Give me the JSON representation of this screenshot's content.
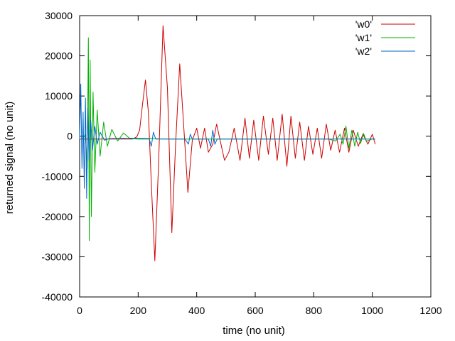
{
  "chart_data": {
    "type": "line",
    "title": "",
    "xlabel": "time (no unit)",
    "ylabel": "returned signal (no unit)",
    "xlim": [
      0,
      1200
    ],
    "ylim": [
      -40000,
      30000
    ],
    "x_ticks": [
      0,
      200,
      400,
      600,
      800,
      1000,
      1200
    ],
    "y_ticks": [
      -40000,
      -30000,
      -20000,
      -10000,
      0,
      10000,
      20000,
      30000
    ],
    "x_tick_labels": [
      "0",
      "200",
      "400",
      "600",
      "800",
      "1000",
      "1200"
    ],
    "y_tick_labels": [
      "-40000",
      "-30000",
      "-20000",
      "-10000",
      "0",
      "10000",
      "20000",
      "30000"
    ],
    "grid": false,
    "legend_position": "top-right",
    "series": [
      {
        "name": "'w0'",
        "color": "#cc0000",
        "x": [
          0,
          180,
          195,
          205,
          215,
          225,
          235,
          245,
          257,
          270,
          285,
          300,
          315,
          328,
          342,
          356,
          370,
          385,
          400,
          413,
          427,
          440,
          455,
          468,
          480,
          495,
          510,
          528,
          548,
          565,
          580,
          595,
          612,
          628,
          645,
          660,
          675,
          692,
          708,
          722,
          737,
          752,
          768,
          782,
          797,
          812,
          827,
          843,
          858,
          873,
          888,
          905,
          920,
          935,
          952,
          968,
          985,
          1000,
          1010
        ],
        "y": [
          -700,
          -700,
          -200,
          1500,
          8000,
          14000,
          6000,
          -12000,
          -31000,
          -6000,
          27500,
          12000,
          -24000,
          -2000,
          18000,
          2000,
          -14000,
          -1000,
          2000,
          -3000,
          2000,
          -4000,
          -2000,
          3000,
          -1000,
          -6000,
          -4000,
          2000,
          -6000,
          4500,
          -5500,
          4000,
          -6000,
          5000,
          -4500,
          4500,
          -6000,
          5500,
          -7500,
          5000,
          -5500,
          3500,
          -6000,
          2500,
          -4500,
          2000,
          -5500,
          3000,
          -3500,
          1500,
          -4000,
          2000,
          -4000,
          1500,
          -2500,
          500,
          -2000,
          500,
          -2000
        ]
      },
      {
        "name": "'w1'",
        "color": "#00b000",
        "x": [
          10,
          20,
          26,
          30,
          33,
          36,
          40,
          46,
          52,
          60,
          70,
          82,
          95,
          110,
          130,
          150,
          170,
          200,
          250,
          300,
          400,
          500,
          600,
          700,
          800,
          850,
          875,
          890,
          900,
          910,
          920,
          930,
          940,
          950,
          960,
          970,
          980,
          1000,
          1010
        ],
        "y": [
          -700,
          500,
          -8000,
          24500,
          -26000,
          19000,
          -20000,
          11000,
          -9000,
          6500,
          -5000,
          3500,
          -2500,
          1700,
          -1200,
          800,
          -500,
          -500,
          -600,
          -700,
          -700,
          -700,
          -700,
          -700,
          -700,
          -700,
          -1200,
          500,
          -2000,
          2500,
          -3000,
          1500,
          -2500,
          1000,
          -1800,
          700,
          -1200,
          -700,
          -700
        ]
      },
      {
        "name": "'w2'",
        "color": "#0066cc",
        "x": [
          0,
          4,
          8,
          12,
          16,
          20,
          24,
          28,
          32,
          38,
          44,
          52,
          60,
          70,
          85,
          100,
          150,
          200,
          238,
          245,
          252,
          260,
          300,
          360,
          372,
          378,
          385,
          440,
          448,
          455,
          462,
          470,
          540,
          620,
          700,
          780,
          860,
          930,
          1000,
          1010
        ],
        "y": [
          -700,
          13000,
          -8000,
          6000,
          -13000,
          9500,
          -15500,
          7000,
          -6000,
          4000,
          -3500,
          2500,
          -2000,
          1000,
          -1000,
          -600,
          -500,
          -700,
          -700,
          -2500,
          1000,
          -700,
          -700,
          -700,
          -2000,
          500,
          -700,
          -700,
          -2500,
          1500,
          -2000,
          -700,
          -700,
          -700,
          -700,
          -700,
          -700,
          -700,
          -700,
          -700
        ]
      }
    ]
  }
}
